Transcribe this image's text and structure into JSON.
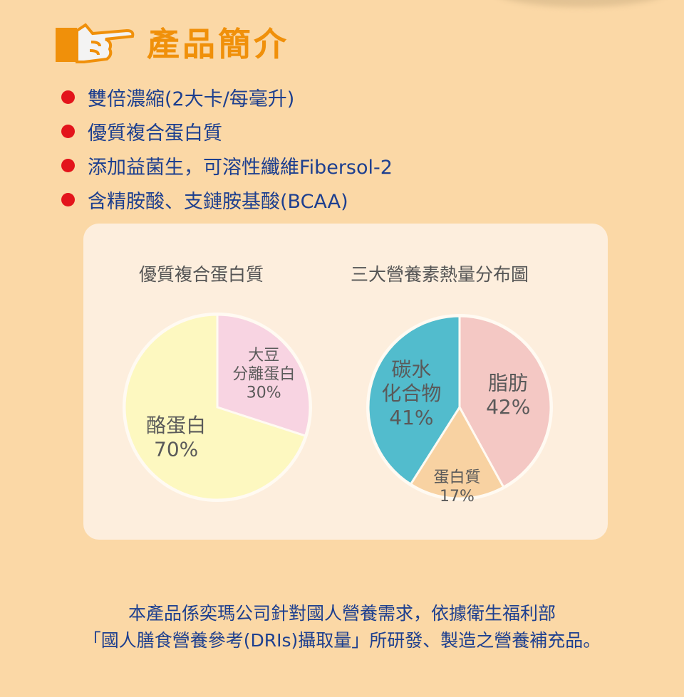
{
  "header": {
    "title": "產品簡介",
    "icon": "pointing-hand-icon"
  },
  "bullets": [
    "雙倍濃縮(2大卡/每毫升)",
    "優質複合蛋白質",
    "添加益菌生，可溶性纖維Fibersol-2",
    "含精胺酸、支鏈胺基酸(BCAA)"
  ],
  "colors": {
    "background": "#fbd8a6",
    "title": "#f0900a",
    "text": "#1d3f8f",
    "bullet": "#e3141b"
  },
  "chart_data": [
    {
      "type": "pie",
      "title": "優質複合蛋白質",
      "start": "top",
      "direction": "clockwise",
      "slices": [
        {
          "label": [
            "大豆",
            "分離蛋白"
          ],
          "value": 30,
          "value_label": "30%",
          "color": "#f8d4e2"
        },
        {
          "label": [
            "酪蛋白"
          ],
          "value": 70,
          "value_label": "70%",
          "color": "#fdf8c0"
        }
      ]
    },
    {
      "type": "pie",
      "title": "三大營養素熱量分布圖",
      "start": "top",
      "direction": "clockwise",
      "slices": [
        {
          "label": [
            "脂肪"
          ],
          "value": 42,
          "value_label": "42%",
          "color": "#f4c8c4"
        },
        {
          "label": [
            "蛋白質"
          ],
          "value": 17,
          "value_label": "17%",
          "color": "#f8d2a2"
        },
        {
          "label": [
            "碳水",
            "化合物"
          ],
          "value": 41,
          "value_label": "41%",
          "color": "#52bccd"
        }
      ]
    }
  ],
  "footer": [
    "本產品係奕瑪公司針對國人營養需求，依據衛生福利部",
    "「國人膳食營養參考(DRIs)攝取量」所研發、製造之營養補充品。"
  ]
}
